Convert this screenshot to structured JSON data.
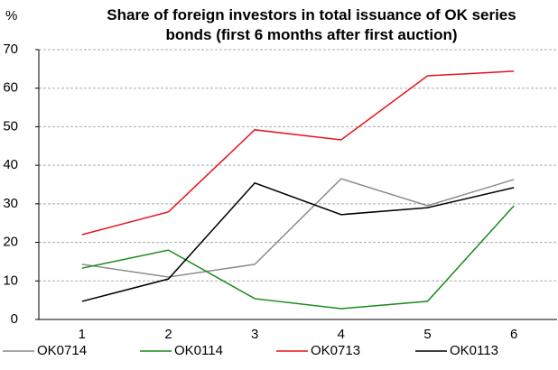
{
  "chart_data": {
    "type": "line",
    "title": "Share of foreign investors in total issuance of OK series bonds (first 6 months after first auction)",
    "y_label": "%",
    "categories": [
      "1",
      "2",
      "3",
      "4",
      "5",
      "6"
    ],
    "series": [
      {
        "name": "OK0714",
        "color": "#8c8c8c",
        "values": [
          14.3,
          11,
          14.3,
          36.5,
          29.5,
          36.3
        ]
      },
      {
        "name": "OK0114",
        "color": "#1a8a1a",
        "values": [
          13.3,
          18,
          5.4,
          2.8,
          4.7,
          29.5
        ]
      },
      {
        "name": "OK0713",
        "color": "#e8141b",
        "values": [
          22,
          27.9,
          49.2,
          46.6,
          63.2,
          64.4
        ]
      },
      {
        "name": "OK0113",
        "color": "#000000",
        "values": [
          4.7,
          10.5,
          35.4,
          27.2,
          29,
          34.2
        ]
      }
    ],
    "ylim": [
      0,
      70
    ],
    "yticks": [
      0,
      10,
      20,
      30,
      40,
      50,
      60,
      70
    ],
    "grid": true,
    "legend": "bottom"
  }
}
